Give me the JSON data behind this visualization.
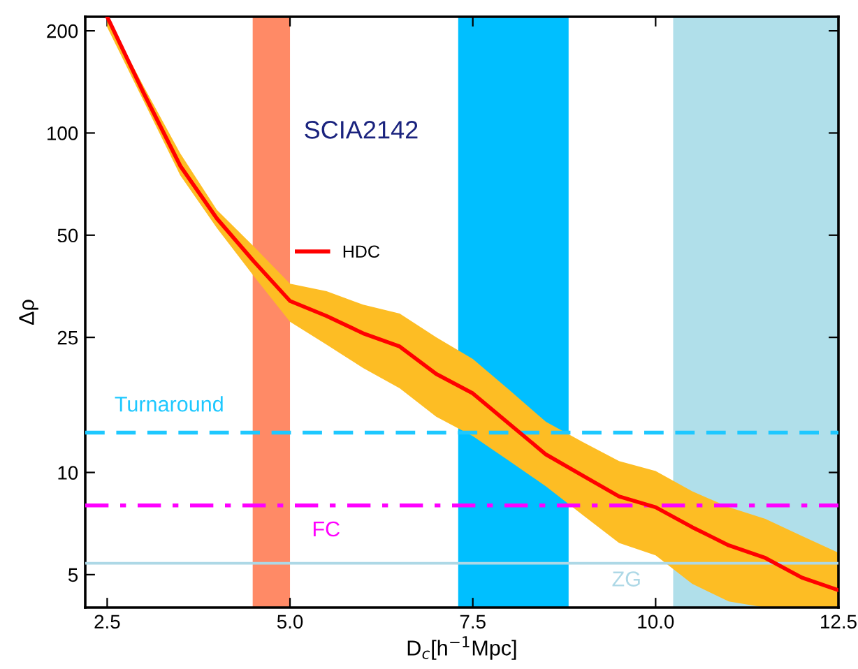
{
  "chart_data": {
    "type": "line",
    "xlabel": "D$_{c}$[h$^{−1}$Mpc]",
    "ylabel": "Δρ",
    "annotations": [
      "SCIA2142"
    ],
    "x": [
      2.5,
      3.0,
      3.5,
      4.0,
      4.5,
      5.0,
      5.5,
      6.0,
      6.5,
      7.0,
      7.5,
      8.0,
      8.5,
      9.0,
      9.5,
      10.0,
      10.5,
      11.0,
      11.5,
      12.0,
      12.5
    ],
    "series": [
      {
        "name": "HDC",
        "color": "#ff0000",
        "values": [
          220,
          131,
          80,
          56,
          42,
          32,
          28.9,
          25.7,
          23.5,
          19.5,
          17.1,
          13.9,
          11.3,
          9.8,
          8.5,
          7.9,
          6.9,
          6.1,
          5.6,
          4.9,
          4.5
        ],
        "upper": [
          220,
          137,
          87,
          59.4,
          46.4,
          36,
          34.2,
          31.2,
          29.4,
          25,
          21.6,
          17.5,
          14.1,
          12.3,
          10.8,
          10.1,
          8.8,
          7.9,
          7.3,
          6.5,
          5.8
        ],
        "lower": [
          205,
          124,
          75,
          52.5,
          38,
          27.8,
          23.8,
          20.3,
          17.7,
          14.6,
          12.8,
          10.8,
          9.1,
          7.5,
          6.2,
          5.7,
          4.7,
          4.17,
          4.0,
          4.0,
          4.0
        ]
      }
    ],
    "log": "y",
    "xlim": [
      2.2,
      12.5
    ],
    "ylim": [
      4.0,
      220
    ],
    "xticks": [
      {
        "value": 2.5,
        "label": "2.5"
      },
      {
        "value": 5.0,
        "label": "5.0"
      },
      {
        "value": 7.5,
        "label": "7.5"
      },
      {
        "value": 10.0,
        "label": "10.0"
      },
      {
        "value": 12.5,
        "label": "12.5"
      }
    ],
    "yticks": [
      5,
      10,
      25,
      50,
      100,
      200
    ],
    "ref_lines": [
      {
        "axis": "y",
        "value": 13.1,
        "label": "Turnaround",
        "color": "#1ec8ff",
        "line_style": "dashed"
      },
      {
        "axis": "y",
        "value": 8.0,
        "label": "FC",
        "color": "#ff00ff",
        "line_style": "dashdot"
      },
      {
        "axis": "y",
        "value": 5.4,
        "label": "ZG",
        "color": "#add8e6",
        "line_style": "solid"
      }
    ],
    "bands": [
      {
        "axis": "x",
        "from": 4.49,
        "to": 5.0,
        "color": "#ff8a66"
      },
      {
        "axis": "x",
        "from": 7.3,
        "to": 8.81,
        "color": "#00bfff"
      },
      {
        "axis": "x",
        "from": 10.24,
        "to": 12.5,
        "color": "#b0dfea"
      }
    ],
    "legend": "center",
    "grid": false,
    "marker": "none",
    "line_style": "solid"
  }
}
